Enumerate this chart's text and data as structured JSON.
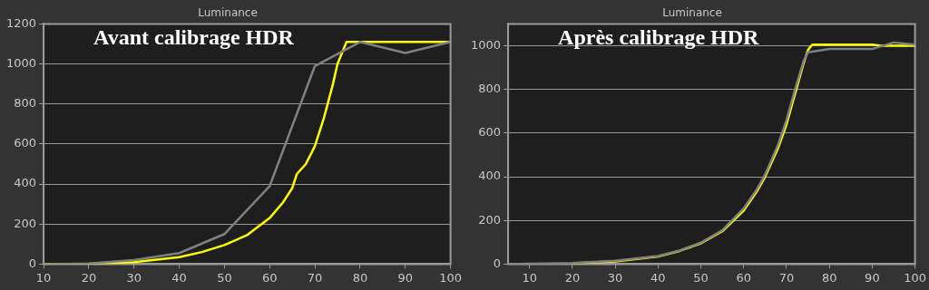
{
  "chart_data": [
    {
      "type": "line",
      "title": "Luminance",
      "annotations": [
        "Avant calibrage HDR"
      ],
      "xlim": [
        10,
        100
      ],
      "xticks": [
        10,
        20,
        30,
        40,
        50,
        60,
        70,
        80,
        90,
        100
      ],
      "ylim": [
        0,
        1200
      ],
      "yticks": [
        0,
        200,
        400,
        600,
        800,
        1000,
        1200
      ],
      "grid": "y",
      "legend": false,
      "marker": "none",
      "series": [
        {
          "color": "#ffff00",
          "x": [
            10,
            20,
            30,
            40,
            45,
            50,
            55,
            60,
            63,
            65,
            66,
            68,
            70,
            72,
            74,
            75,
            77,
            80,
            90,
            100
          ],
          "values": [
            0,
            2,
            10,
            35,
            60,
            95,
            145,
            230,
            310,
            380,
            450,
            500,
            590,
            730,
            900,
            1000,
            1110,
            1110,
            1110,
            1110
          ]
        },
        {
          "color": "#808080",
          "x": [
            10,
            20,
            30,
            40,
            50,
            60,
            70,
            80,
            90,
            100
          ],
          "values": [
            0,
            3,
            20,
            55,
            150,
            390,
            990,
            1110,
            1055,
            1110
          ]
        }
      ]
    },
    {
      "type": "line",
      "title": "Luminance",
      "annotations": [
        "Après calibrage HDR"
      ],
      "xlim": [
        5,
        100
      ],
      "xticks": [
        10,
        20,
        30,
        40,
        50,
        60,
        70,
        80,
        90,
        100
      ],
      "ylim": [
        0,
        1100
      ],
      "yticks": [
        0,
        200,
        400,
        600,
        800,
        1000
      ],
      "grid": "y",
      "legend": false,
      "marker": "none",
      "series": [
        {
          "color": "#ffff00",
          "x": [
            20,
            30,
            40,
            45,
            50,
            55,
            60,
            63,
            65,
            68,
            70,
            72,
            74,
            75,
            76,
            90,
            92,
            100
          ],
          "values": [
            4,
            12,
            35,
            60,
            95,
            150,
            245,
            330,
            400,
            530,
            640,
            780,
            920,
            980,
            1005,
            1005,
            1000,
            1000
          ]
        },
        {
          "color": "#808080",
          "x": [
            5,
            10,
            20,
            30,
            40,
            45,
            50,
            55,
            60,
            63,
            65,
            68,
            70,
            72,
            74,
            75,
            80,
            90,
            95,
            100
          ],
          "values": [
            0,
            2,
            5,
            15,
            37,
            62,
            98,
            155,
            255,
            340,
            410,
            545,
            660,
            800,
            930,
            970,
            985,
            985,
            1015,
            1005
          ]
        }
      ]
    }
  ]
}
